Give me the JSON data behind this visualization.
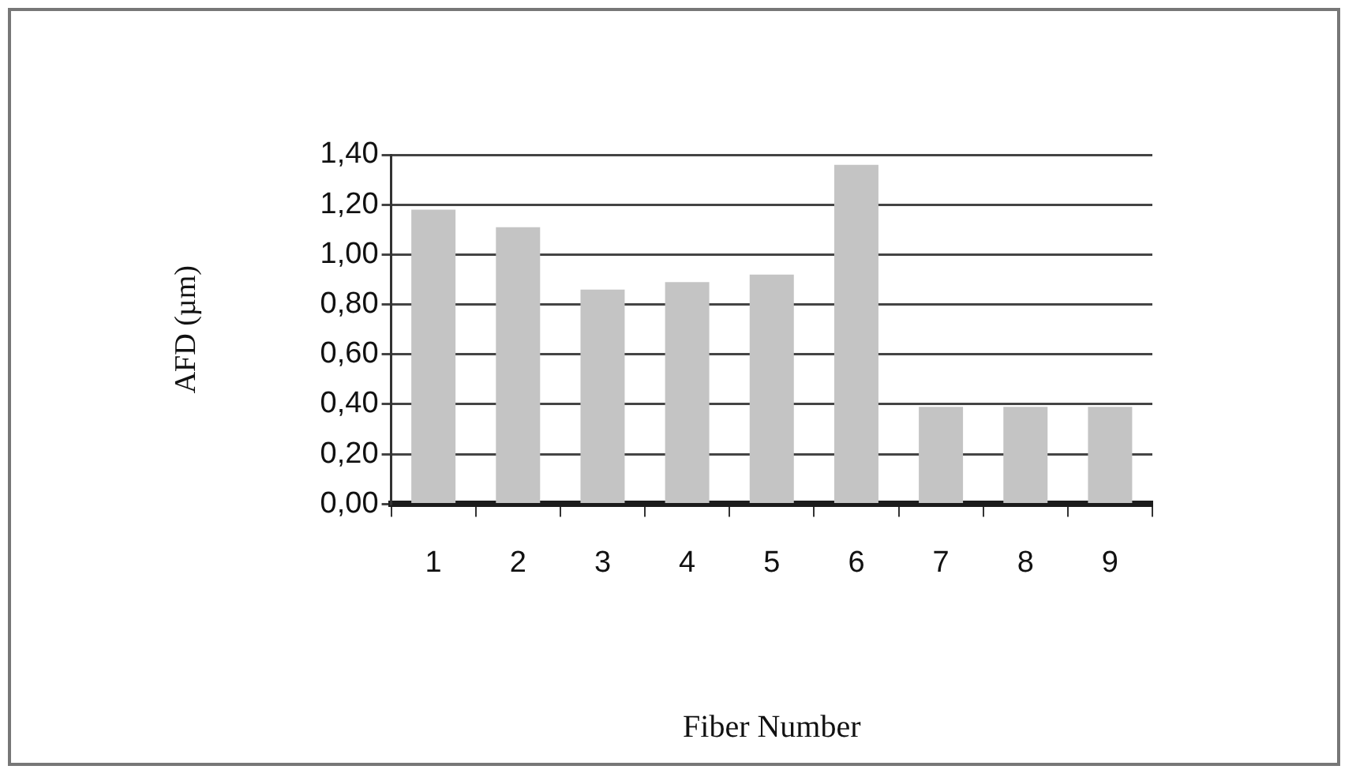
{
  "chart_data": {
    "type": "bar",
    "xlabel": "Fiber Number",
    "ylabel": "AFD (µm)",
    "categories": [
      "1",
      "2",
      "3",
      "4",
      "5",
      "6",
      "7",
      "8",
      "9"
    ],
    "values": [
      1.18,
      1.11,
      0.86,
      0.89,
      0.92,
      1.36,
      0.39,
      0.39,
      0.39
    ],
    "color": "#c4c4c4",
    "ylim": [
      0,
      1.4
    ],
    "yticks": [
      {
        "value": 0,
        "label": "0,00"
      },
      {
        "value": 0.2,
        "label": "0,20"
      },
      {
        "value": 0.4,
        "label": "0,40"
      },
      {
        "value": 0.6,
        "label": "0,60"
      },
      {
        "value": 0.8,
        "label": "0,80"
      },
      {
        "value": 1,
        "label": "1,00"
      },
      {
        "value": 1.2,
        "label": "1,20"
      },
      {
        "value": 1.4,
        "label": "1,40"
      }
    ],
    "grid": "y"
  }
}
